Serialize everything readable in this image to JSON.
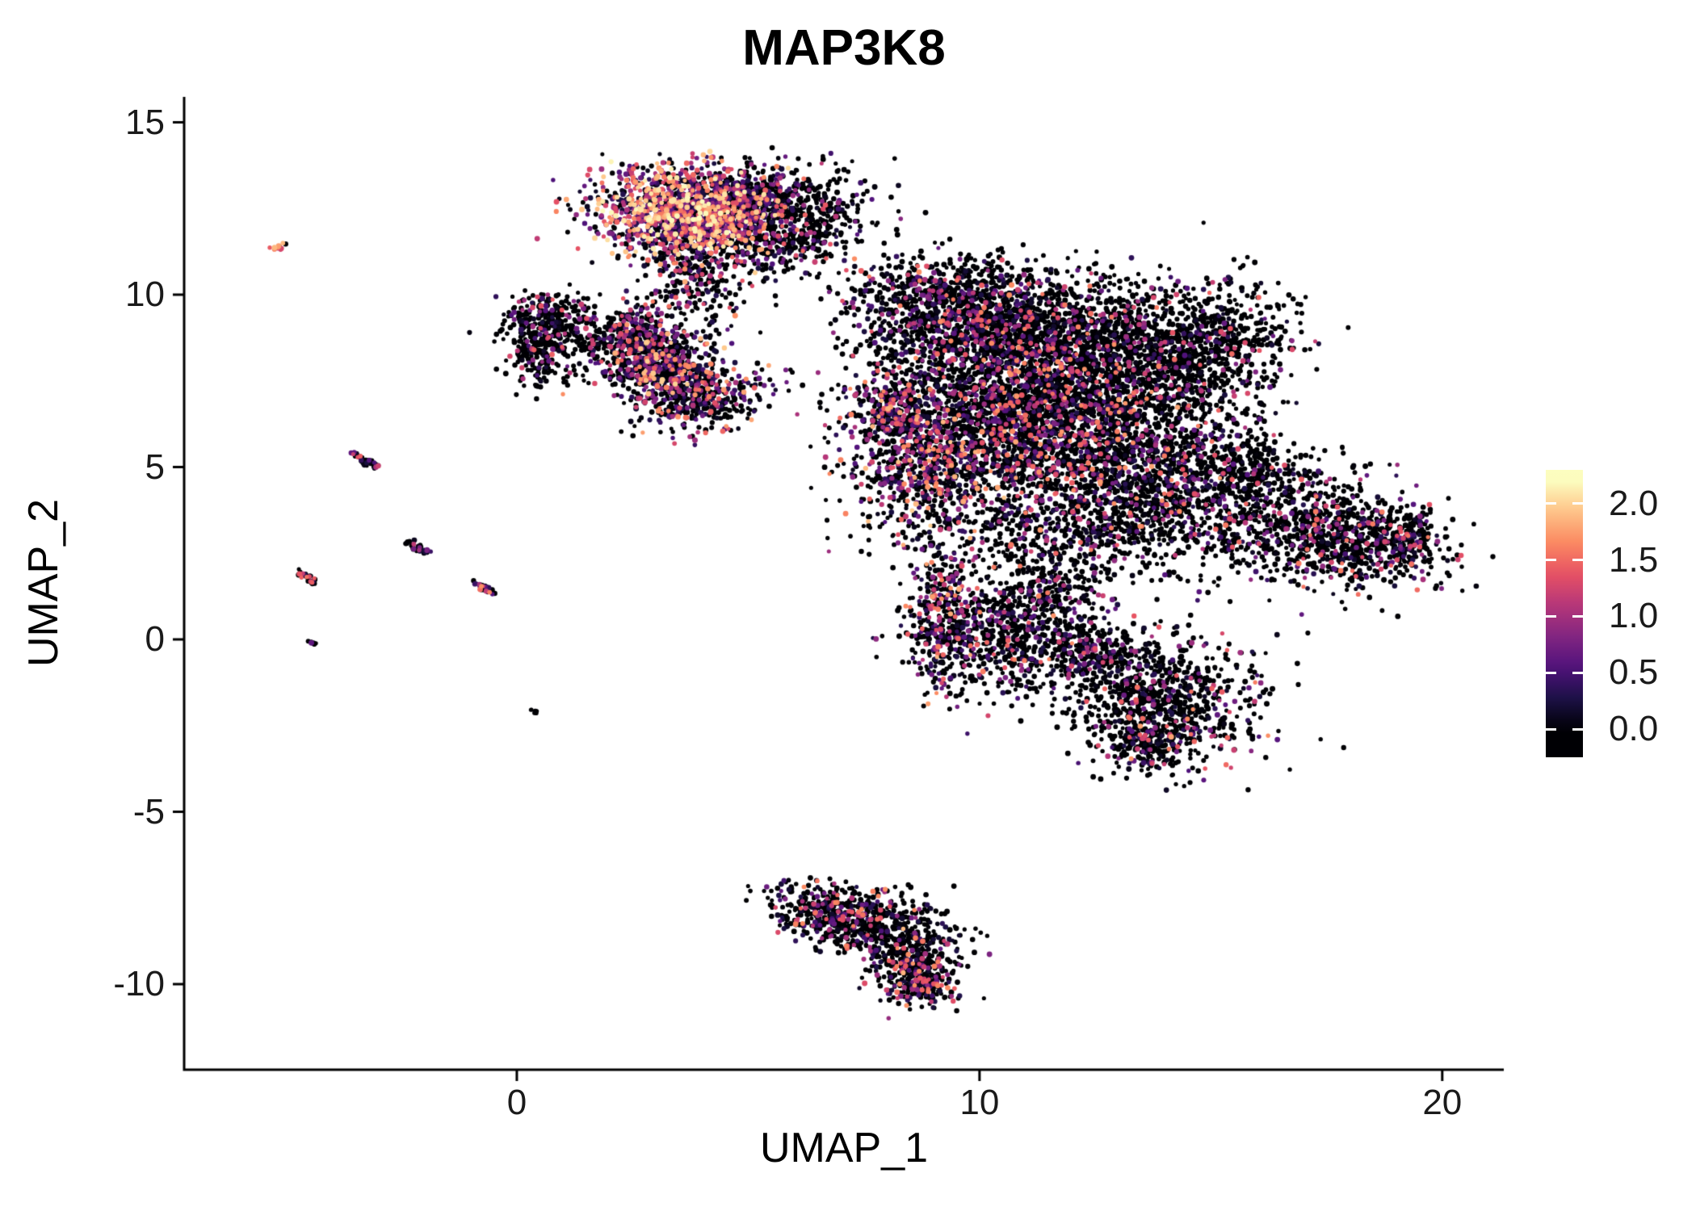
{
  "chart_data": {
    "type": "scatter",
    "title": "MAP3K8",
    "xlabel": "UMAP_1",
    "ylabel": "UMAP_2",
    "xlim": [
      -7.19,
      21.33
    ],
    "ylim": [
      -12.48,
      15.74
    ],
    "x_ticks": [
      0,
      10,
      20
    ],
    "y_ticks": [
      15,
      10,
      5,
      0,
      -5,
      -10
    ],
    "grid": false,
    "legend_position": "right",
    "colorbar": {
      "tick_labels": [
        "2.0",
        "1.5",
        "1.0",
        "0.5",
        "0.0"
      ],
      "tick_values": [
        2.0,
        1.5,
        1.0,
        0.5,
        0.0
      ],
      "data_min": 0,
      "data_max": 2.2,
      "bar_value_range": [
        -0.25,
        2.3
      ],
      "colormap": "magma",
      "stops": [
        {
          "t": 0,
          "color": "#000004"
        },
        {
          "t": 0.125,
          "color": "#1d1147"
        },
        {
          "t": 0.25,
          "color": "#51127c"
        },
        {
          "t": 0.375,
          "color": "#822681"
        },
        {
          "t": 0.5,
          "color": "#b63679"
        },
        {
          "t": 0.625,
          "color": "#e65164"
        },
        {
          "t": 0.75,
          "color": "#fb8861"
        },
        {
          "t": 0.875,
          "color": "#fec287"
        },
        {
          "t": 1,
          "color": "#fcfdbf"
        }
      ]
    },
    "point_count_approx": 17800,
    "clusters": [
      {
        "name": "top-main",
        "type": "blob",
        "cx": 3.6,
        "cy": 12.35,
        "sx": 0.95,
        "sy": 0.62,
        "rot": -8,
        "n": 1500,
        "p_pos": 0.8,
        "vmax": 2.2,
        "pow": 1.25
      },
      {
        "name": "top-right",
        "type": "blob",
        "cx": 5.0,
        "cy": 12.9,
        "sx": 0.7,
        "sy": 0.45,
        "rot": 0,
        "n": 420,
        "p_pos": 0.5,
        "vmax": 1.8,
        "pow": 1.9
      },
      {
        "name": "top-lower-right",
        "type": "blob",
        "cx": 5.6,
        "cy": 11.6,
        "sx": 0.6,
        "sy": 0.5,
        "rot": 0,
        "n": 300,
        "p_pos": 0.3,
        "vmax": 1.5,
        "pow": 2.3
      },
      {
        "name": "top-right-sparse",
        "type": "blob",
        "cx": 6.5,
        "cy": 12.5,
        "sx": 0.7,
        "sy": 0.6,
        "rot": 0,
        "n": 240,
        "p_pos": 0.28,
        "vmax": 1.4,
        "pow": 2.3
      },
      {
        "name": "top-tail",
        "type": "blob",
        "cx": 3.9,
        "cy": 10.5,
        "sx": 0.5,
        "sy": 0.8,
        "rot": 0,
        "n": 260,
        "p_pos": 0.4,
        "vmax": 1.7,
        "pow": 1.9
      },
      {
        "name": "mid-upper-bridge",
        "type": "blob",
        "cx": 2.5,
        "cy": 9.0,
        "sx": 0.45,
        "sy": 0.4,
        "rot": 0,
        "n": 160,
        "p_pos": 0.5,
        "vmax": 1.7,
        "pow": 1.8
      },
      {
        "name": "mid-main",
        "type": "blob",
        "cx": 3.1,
        "cy": 8.0,
        "sx": 0.6,
        "sy": 0.55,
        "rot": 0,
        "n": 620,
        "p_pos": 0.55,
        "vmax": 2.0,
        "pow": 1.6
      },
      {
        "name": "mid-lower",
        "type": "blob",
        "cx": 4.0,
        "cy": 7.0,
        "sx": 0.65,
        "sy": 0.45,
        "rot": 15,
        "n": 400,
        "p_pos": 0.5,
        "vmax": 1.8,
        "pow": 1.8
      },
      {
        "name": "left-upper",
        "type": "blob",
        "cx": 0.75,
        "cy": 9.3,
        "sx": 0.5,
        "sy": 0.38,
        "rot": 0,
        "n": 240,
        "p_pos": 0.3,
        "vmax": 1.5,
        "pow": 2.4
      },
      {
        "name": "left-lower",
        "type": "blob",
        "cx": 0.55,
        "cy": 8.3,
        "sx": 0.45,
        "sy": 0.5,
        "rot": 0,
        "n": 230,
        "p_pos": 0.28,
        "vmax": 1.5,
        "pow": 2.4
      },
      {
        "name": "left-bridge",
        "type": "blob",
        "cx": 1.7,
        "cy": 8.6,
        "sx": 0.3,
        "sy": 0.3,
        "rot": 0,
        "n": 70,
        "p_pos": 0.3,
        "vmax": 1.4,
        "pow": 2.2
      },
      {
        "name": "main-nw",
        "type": "blob",
        "cx": 9.4,
        "cy": 9.2,
        "sx": 1.1,
        "sy": 0.85,
        "rot": 0,
        "n": 850,
        "p_pos": 0.38,
        "vmax": 1.7,
        "pow": 2.2
      },
      {
        "name": "main-n",
        "type": "blob",
        "cx": 11.5,
        "cy": 8.6,
        "sx": 1.5,
        "sy": 1.0,
        "rot": 0,
        "n": 1500,
        "p_pos": 0.32,
        "vmax": 1.7,
        "pow": 2.3
      },
      {
        "name": "main-ne",
        "type": "blob",
        "cx": 13.7,
        "cy": 8.0,
        "sx": 1.2,
        "sy": 1.0,
        "rot": 0,
        "n": 850,
        "p_pos": 0.22,
        "vmax": 1.5,
        "pow": 2.5
      },
      {
        "name": "main-c",
        "type": "blob",
        "cx": 10.6,
        "cy": 6.4,
        "sx": 1.4,
        "sy": 1.1,
        "rot": 0,
        "n": 1450,
        "p_pos": 0.42,
        "vmax": 1.8,
        "pow": 2.1
      },
      {
        "name": "main-e",
        "type": "blob",
        "cx": 12.6,
        "cy": 5.4,
        "sx": 1.4,
        "sy": 1.2,
        "rot": 0,
        "n": 1300,
        "p_pos": 0.36,
        "vmax": 1.8,
        "pow": 2.2
      },
      {
        "name": "main-w",
        "type": "blob",
        "cx": 8.9,
        "cy": 4.9,
        "sx": 0.9,
        "sy": 1.1,
        "rot": 0,
        "n": 650,
        "p_pos": 0.5,
        "vmax": 2.0,
        "pow": 1.8
      },
      {
        "name": "main-w-edge",
        "type": "blob",
        "cx": 8.15,
        "cy": 6.6,
        "sx": 0.4,
        "sy": 0.55,
        "rot": 0,
        "n": 260,
        "p_pos": 0.55,
        "vmax": 1.9,
        "pow": 1.7
      },
      {
        "name": "main-se",
        "type": "blob",
        "cx": 14.8,
        "cy": 4.4,
        "sx": 0.95,
        "sy": 1.15,
        "rot": 0,
        "n": 480,
        "p_pos": 0.22,
        "vmax": 1.5,
        "pow": 2.5
      },
      {
        "name": "main-s-sparse",
        "type": "blob",
        "cx": 11.4,
        "cy": 3.1,
        "sx": 1.5,
        "sy": 0.85,
        "rot": 0,
        "n": 420,
        "p_pos": 0.3,
        "vmax": 1.6,
        "pow": 2.3
      },
      {
        "name": "main-arm-ne",
        "type": "blob",
        "cx": 15.3,
        "cy": 8.8,
        "sx": 0.85,
        "sy": 0.8,
        "rot": 0,
        "n": 330,
        "p_pos": 0.16,
        "vmax": 1.4,
        "pow": 2.6
      },
      {
        "name": "main-top-edge",
        "type": "blob",
        "cx": 9.2,
        "cy": 10.3,
        "sx": 1.1,
        "sy": 0.45,
        "rot": 0,
        "n": 230,
        "p_pos": 0.3,
        "vmax": 1.6,
        "pow": 2.2
      },
      {
        "name": "main-gap-sparse",
        "type": "blob",
        "cx": 13.2,
        "cy": 3.4,
        "sx": 0.8,
        "sy": 0.7,
        "rot": 0,
        "n": 200,
        "p_pos": 0.25,
        "vmax": 1.5,
        "pow": 2.4
      },
      {
        "name": "wing-1",
        "type": "blob",
        "cx": 16.9,
        "cy": 3.3,
        "sx": 1.15,
        "sy": 0.9,
        "rot": -14,
        "n": 700,
        "p_pos": 0.28,
        "vmax": 1.6,
        "pow": 2.3
      },
      {
        "name": "wing-2",
        "type": "blob",
        "cx": 18.5,
        "cy": 2.8,
        "sx": 0.8,
        "sy": 0.6,
        "rot": -12,
        "n": 430,
        "p_pos": 0.3,
        "vmax": 1.6,
        "pow": 2.2
      },
      {
        "name": "wing-tip",
        "type": "blob",
        "cx": 19.25,
        "cy": 3.0,
        "sx": 0.3,
        "sy": 0.35,
        "rot": 0,
        "n": 80,
        "p_pos": 0.5,
        "vmax": 1.7,
        "pow": 1.7
      },
      {
        "name": "wing-upper-sparse",
        "type": "blob",
        "cx": 15.9,
        "cy": 5.1,
        "sx": 0.5,
        "sy": 0.45,
        "rot": 0,
        "n": 120,
        "p_pos": 0.2,
        "vmax": 1.4,
        "pow": 2.5
      },
      {
        "name": "low-left-strip",
        "type": "blob",
        "cx": 9.15,
        "cy": 0.5,
        "sx": 0.35,
        "sy": 1.1,
        "rot": 0,
        "n": 300,
        "p_pos": 0.5,
        "vmax": 1.9,
        "pow": 1.8
      },
      {
        "name": "low-left-main",
        "type": "blob",
        "cx": 10.4,
        "cy": 0.1,
        "sx": 0.85,
        "sy": 0.85,
        "rot": 0,
        "n": 620,
        "p_pos": 0.36,
        "vmax": 1.7,
        "pow": 2.2
      },
      {
        "name": "low-bridge",
        "type": "blob",
        "cx": 11.6,
        "cy": 1.4,
        "sx": 0.6,
        "sy": 0.6,
        "rot": 0,
        "n": 200,
        "p_pos": 0.3,
        "vmax": 1.5,
        "pow": 2.4
      },
      {
        "name": "low-right-arm",
        "type": "blob",
        "cx": 12.5,
        "cy": -0.4,
        "sx": 0.55,
        "sy": 0.55,
        "rot": 0,
        "n": 260,
        "p_pos": 0.35,
        "vmax": 1.6,
        "pow": 2.3
      },
      {
        "name": "low-right-main",
        "type": "blob",
        "cx": 13.9,
        "cy": -1.7,
        "sx": 1.05,
        "sy": 0.9,
        "rot": -10,
        "n": 850,
        "p_pos": 0.3,
        "vmax": 1.7,
        "pow": 2.3
      },
      {
        "name": "low-right-tip",
        "type": "blob",
        "cx": 13.6,
        "cy": -3.1,
        "sx": 0.5,
        "sy": 0.4,
        "rot": 0,
        "n": 180,
        "p_pos": 0.35,
        "vmax": 1.8,
        "pow": 2.0
      },
      {
        "name": "bottom-nw",
        "type": "blob",
        "cx": 6.6,
        "cy": -7.8,
        "sx": 0.6,
        "sy": 0.4,
        "rot": -10,
        "n": 280,
        "p_pos": 0.35,
        "vmax": 1.7,
        "pow": 2.1
      },
      {
        "name": "bottom-c",
        "type": "blob",
        "cx": 7.8,
        "cy": -8.3,
        "sx": 0.8,
        "sy": 0.5,
        "rot": -15,
        "n": 420,
        "p_pos": 0.32,
        "vmax": 1.7,
        "pow": 2.2
      },
      {
        "name": "bottom-se",
        "type": "blob",
        "cx": 8.6,
        "cy": -9.3,
        "sx": 0.5,
        "sy": 0.55,
        "rot": 0,
        "n": 330,
        "p_pos": 0.38,
        "vmax": 1.9,
        "pow": 1.9
      },
      {
        "name": "bottom-tip",
        "type": "blob",
        "cx": 8.85,
        "cy": -10.0,
        "sx": 0.3,
        "sy": 0.3,
        "rot": 0,
        "n": 120,
        "p_pos": 0.5,
        "vmax": 2.0,
        "pow": 1.6
      },
      {
        "name": "iso-dot-red",
        "type": "streak",
        "x1": -5.25,
        "y1": 11.35,
        "x2": -5.0,
        "y2": 11.45,
        "w": 0.04,
        "n": 12,
        "p_pos": 0.85,
        "vmax": 1.9,
        "pow": 0.5
      },
      {
        "name": "iso-streak-1",
        "type": "streak",
        "x1": -3.5,
        "y1": 5.4,
        "x2": -3.05,
        "y2": 5.0,
        "w": 0.05,
        "n": 40,
        "p_pos": 0.5,
        "vmax": 1.5,
        "pow": 1.8
      },
      {
        "name": "iso-streak-2",
        "type": "streak",
        "x1": -2.35,
        "y1": 2.8,
        "x2": -1.95,
        "y2": 2.5,
        "w": 0.05,
        "n": 35,
        "p_pos": 0.45,
        "vmax": 1.4,
        "pow": 2.0
      },
      {
        "name": "iso-streak-3",
        "type": "streak",
        "x1": -4.7,
        "y1": 1.95,
        "x2": -4.35,
        "y2": 1.65,
        "w": 0.05,
        "n": 35,
        "p_pos": 0.5,
        "vmax": 1.6,
        "pow": 1.8
      },
      {
        "name": "iso-streak-4",
        "type": "streak",
        "x1": -0.9,
        "y1": 1.65,
        "x2": -0.5,
        "y2": 1.35,
        "w": 0.05,
        "n": 35,
        "p_pos": 0.55,
        "vmax": 1.7,
        "pow": 1.5
      },
      {
        "name": "iso-dot-1",
        "type": "streak",
        "x1": -4.5,
        "y1": -0.05,
        "x2": -4.35,
        "y2": -0.15,
        "w": 0.03,
        "n": 8,
        "p_pos": 0.15,
        "vmax": 1.0,
        "pow": 2.0
      },
      {
        "name": "iso-dot-2",
        "type": "streak",
        "x1": 0.3,
        "y1": -2.05,
        "x2": 0.45,
        "y2": -2.15,
        "w": 0.03,
        "n": 6,
        "p_pos": 0.1,
        "vmax": 1.0,
        "pow": 2.0
      }
    ]
  }
}
